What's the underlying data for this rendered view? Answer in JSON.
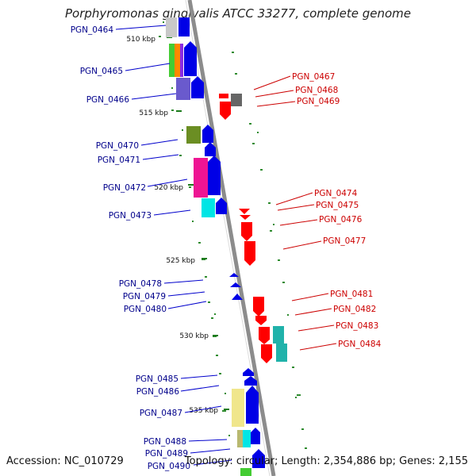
{
  "title": "Porphyromonas gingivalis ATCC 33277, complete genome",
  "footer": {
    "accession": "Accession: NC_010729",
    "summary": "Topology: circular; Length: 2,354,886 bp; Genes: 2,155"
  },
  "colors": {
    "backbone": "#8c8c8c",
    "forward_genes": "#0000e6",
    "reverse_genes": "#ff0000",
    "left_labels": "#00008b",
    "right_labels": "#cc0000",
    "ticks": "#1a7a1a"
  },
  "ticks": [
    "510 kbp",
    "515 kbp",
    "520 kbp",
    "525 kbp",
    "530 kbp",
    "535 kbp"
  ],
  "left_genes": [
    "PGN_0464",
    "PGN_0465",
    "PGN_0466",
    "PGN_0470",
    "PGN_0471",
    "PGN_0472",
    "PGN_0473",
    "PGN_0478",
    "PGN_0479",
    "PGN_0480",
    "PGN_0485",
    "PGN_0486",
    "PGN_0487",
    "PGN_0488",
    "PGN_0489",
    "PGN_0490"
  ],
  "right_genes": [
    "PGN_0467",
    "PGN_0468",
    "PGN_0469",
    "PGN_0474",
    "PGN_0475",
    "PGN_0476",
    "PGN_0477",
    "PGN_0481",
    "PGN_0482",
    "PGN_0483",
    "PGN_0484"
  ]
}
